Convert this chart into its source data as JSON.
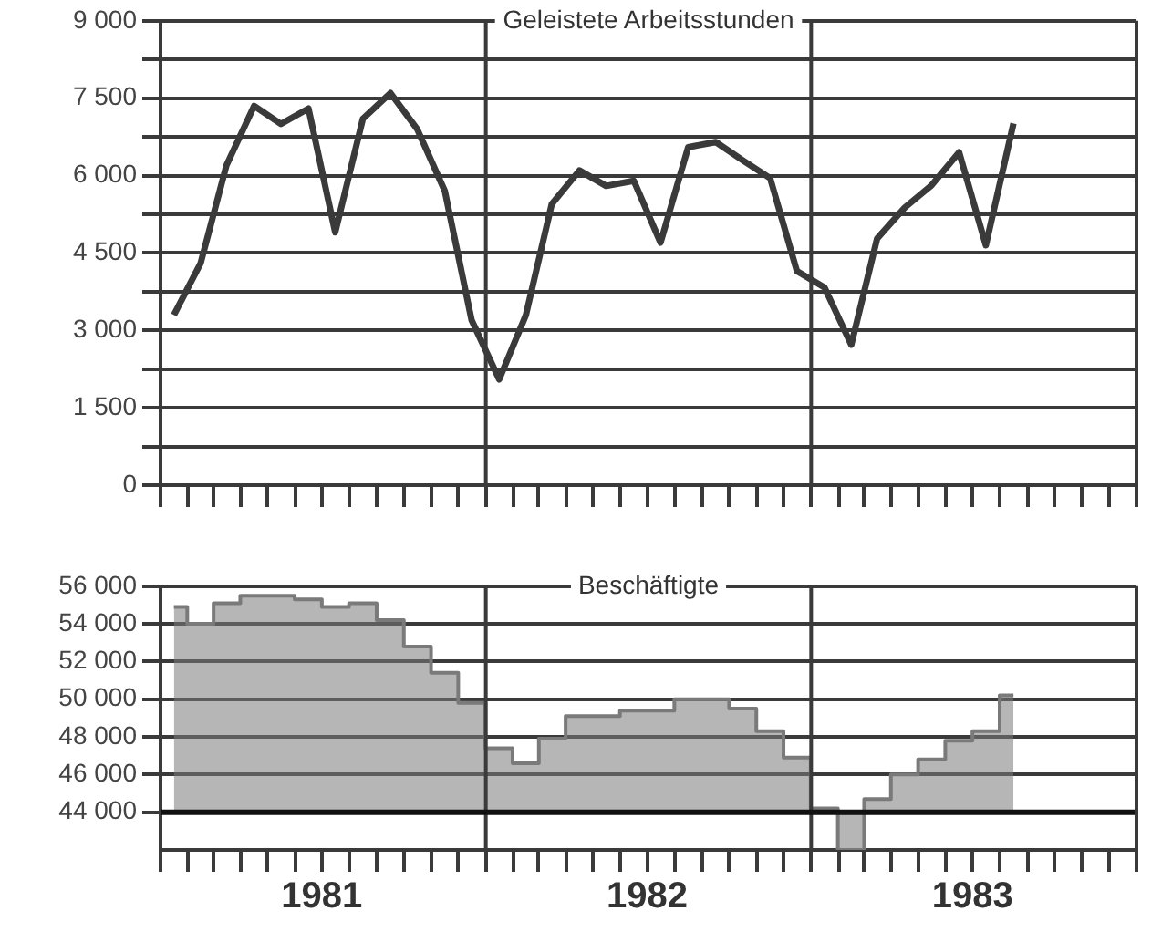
{
  "chart_data": [
    {
      "type": "line",
      "title": "Geleistete Arbeitsstunden",
      "x": [
        "1981-01-16",
        "1981-02-15",
        "1981-03-16",
        "1981-04-16",
        "1981-05-16",
        "1981-06-16",
        "1981-07-16",
        "1981-08-16",
        "1981-09-16",
        "1981-10-16",
        "1981-11-16",
        "1981-12-16",
        "1982-01-16",
        "1982-02-15",
        "1982-03-16",
        "1982-04-16",
        "1982-05-16",
        "1982-06-16",
        "1982-07-16",
        "1982-08-16",
        "1982-09-16",
        "1982-10-16",
        "1982-11-16",
        "1982-12-16",
        "1983-01-16",
        "1983-02-15",
        "1983-03-16",
        "1983-04-16",
        "1983-05-16",
        "1983-06-16",
        "1983-07-16",
        "1983-08-16"
      ],
      "series": [
        {
          "color": "#3a3a3a",
          "values": [
            3300,
            4300,
            6200,
            7350,
            7000,
            7300,
            4900,
            7100,
            7600,
            6900,
            5700,
            3200,
            2050,
            3300,
            5450,
            6100,
            5800,
            5900,
            4700,
            6550,
            6650,
            6300,
            5950,
            4150,
            3830,
            2720,
            4780,
            5380,
            5810,
            6450,
            4650,
            7010
          ]
        }
      ],
      "xlim": [
        "1981-01",
        "1984-01"
      ],
      "xticks": [
        {
          "value": "1981-01",
          "label": null
        },
        {
          "value": "1981-02",
          "label": null
        },
        {
          "value": "1981-03",
          "label": null
        },
        {
          "value": "1981-04",
          "label": null
        },
        {
          "value": "1981-05",
          "label": null
        },
        {
          "value": "1981-06",
          "label": null
        },
        {
          "value": "1981-07",
          "label": null
        },
        {
          "value": "1981-08",
          "label": null
        },
        {
          "value": "1981-09",
          "label": null
        },
        {
          "value": "1981-10",
          "label": null
        },
        {
          "value": "1981-11",
          "label": null
        },
        {
          "value": "1981-12",
          "label": null
        },
        {
          "value": "1982-01",
          "label": null
        },
        {
          "value": "1982-02",
          "label": null
        },
        {
          "value": "1982-03",
          "label": null
        },
        {
          "value": "1982-04",
          "label": null
        },
        {
          "value": "1982-05",
          "label": null
        },
        {
          "value": "1982-06",
          "label": null
        },
        {
          "value": "1982-07",
          "label": null
        },
        {
          "value": "1982-08",
          "label": null
        },
        {
          "value": "1982-09",
          "label": null
        },
        {
          "value": "1982-10",
          "label": null
        },
        {
          "value": "1982-11",
          "label": null
        },
        {
          "value": "1982-12",
          "label": null
        },
        {
          "value": "1983-01",
          "label": null
        },
        {
          "value": "1983-02",
          "label": null
        },
        {
          "value": "1983-03",
          "label": null
        },
        {
          "value": "1983-04",
          "label": null
        },
        {
          "value": "1983-05",
          "label": null
        },
        {
          "value": "1983-06",
          "label": null
        },
        {
          "value": "1983-07",
          "label": null
        },
        {
          "value": "1983-08",
          "label": null
        },
        {
          "value": "1983-09",
          "label": null
        },
        {
          "value": "1983-10",
          "label": null
        },
        {
          "value": "1983-11",
          "label": null
        },
        {
          "value": "1983-12",
          "label": null
        },
        {
          "value": "1984-01",
          "label": null
        }
      ],
      "ylim": [
        0,
        9000
      ],
      "yticks": [
        {
          "value": 0,
          "label": "0"
        },
        {
          "value": 750,
          "label": null
        },
        {
          "value": 1500,
          "label": "1 500"
        },
        {
          "value": 2250,
          "label": null
        },
        {
          "value": 3000,
          "label": "3 000"
        },
        {
          "value": 3750,
          "label": null
        },
        {
          "value": 4500,
          "label": "4 500"
        },
        {
          "value": 5250,
          "label": null
        },
        {
          "value": 6000,
          "label": "6 000"
        },
        {
          "value": 6750,
          "label": null
        },
        {
          "value": 7500,
          "label": "7 500"
        },
        {
          "value": 8250,
          "label": null
        },
        {
          "value": 9000,
          "label": "9 000"
        }
      ],
      "ref_lines": [
        {
          "axis": "x",
          "value": "1982-01",
          "color": "#3a3a3a"
        },
        {
          "axis": "x",
          "value": "1983-01",
          "color": "#3a3a3a"
        }
      ],
      "grid": "y",
      "tick_labels": "y",
      "line_style": "solid",
      "legend": false
    },
    {
      "type": "step",
      "title": "Beschäftigte",
      "x": [
        "1981-01-16",
        "1981-02-15",
        "1981-03-16",
        "1981-04-16",
        "1981-05-16",
        "1981-06-16",
        "1981-07-16",
        "1981-08-16",
        "1981-09-16",
        "1981-10-16",
        "1981-11-16",
        "1981-12-16",
        "1982-01-16",
        "1982-02-15",
        "1982-03-16",
        "1982-04-16",
        "1982-05-16",
        "1982-06-16",
        "1982-07-16",
        "1982-08-16",
        "1982-09-16",
        "1982-10-16",
        "1982-11-16",
        "1982-12-16",
        "1983-01-16",
        "1983-02-15",
        "1983-03-16",
        "1983-04-16",
        "1983-05-16",
        "1983-06-16",
        "1983-07-16",
        "1983-08-16"
      ],
      "series": [
        {
          "color": "#7a7a7a",
          "values": [
            54900,
            54000,
            55100,
            55500,
            55500,
            55300,
            54900,
            55100,
            54200,
            52800,
            51400,
            49800,
            47400,
            46600,
            47900,
            49100,
            49100,
            49400,
            49400,
            50000,
            50000,
            49500,
            48300,
            46900,
            44200,
            42000,
            44700,
            46000,
            46800,
            47800,
            48300,
            50200
          ]
        }
      ],
      "xlim": [
        "1981-01",
        "1984-01"
      ],
      "xticks": [
        {
          "value": "1981-01",
          "label": null
        },
        {
          "value": "1981-02",
          "label": null
        },
        {
          "value": "1981-03",
          "label": null
        },
        {
          "value": "1981-04",
          "label": null
        },
        {
          "value": "1981-05",
          "label": null
        },
        {
          "value": "1981-06",
          "label": null
        },
        {
          "value": "1981-07",
          "label": "1981"
        },
        {
          "value": "1981-08",
          "label": null
        },
        {
          "value": "1981-09",
          "label": null
        },
        {
          "value": "1981-10",
          "label": null
        },
        {
          "value": "1981-11",
          "label": null
        },
        {
          "value": "1981-12",
          "label": null
        },
        {
          "value": "1982-01",
          "label": null
        },
        {
          "value": "1982-02",
          "label": null
        },
        {
          "value": "1982-03",
          "label": null
        },
        {
          "value": "1982-04",
          "label": null
        },
        {
          "value": "1982-05",
          "label": null
        },
        {
          "value": "1982-06",
          "label": null
        },
        {
          "value": "1982-07",
          "label": "1982"
        },
        {
          "value": "1982-08",
          "label": null
        },
        {
          "value": "1982-09",
          "label": null
        },
        {
          "value": "1982-10",
          "label": null
        },
        {
          "value": "1982-11",
          "label": null
        },
        {
          "value": "1982-12",
          "label": null
        },
        {
          "value": "1983-01",
          "label": null
        },
        {
          "value": "1983-02",
          "label": null
        },
        {
          "value": "1983-03",
          "label": null
        },
        {
          "value": "1983-04",
          "label": null
        },
        {
          "value": "1983-05",
          "label": null
        },
        {
          "value": "1983-06",
          "label": null
        },
        {
          "value": "1983-07",
          "label": "1983"
        },
        {
          "value": "1983-08",
          "label": null
        },
        {
          "value": "1983-09",
          "label": null
        },
        {
          "value": "1983-10",
          "label": null
        },
        {
          "value": "1983-11",
          "label": null
        },
        {
          "value": "1983-12",
          "label": null
        },
        {
          "value": "1984-01",
          "label": null
        }
      ],
      "ylim": [
        42000,
        56000
      ],
      "yticks": [
        {
          "value": 44000,
          "label": "44 000"
        },
        {
          "value": 46000,
          "label": "46 000"
        },
        {
          "value": 48000,
          "label": "48 000"
        },
        {
          "value": 50000,
          "label": "50 000"
        },
        {
          "value": 52000,
          "label": "52 000"
        },
        {
          "value": 54000,
          "label": "54 000"
        },
        {
          "value": 56000,
          "label": "56 000"
        }
      ],
      "ref_lines": [
        {
          "axis": "x",
          "value": "1982-01",
          "color": "#3a3a3a"
        },
        {
          "axis": "x",
          "value": "1983-01",
          "color": "#3a3a3a"
        },
        {
          "axis": "y",
          "value": 44000,
          "color": "#111111"
        }
      ],
      "grid": "y",
      "line_style": "solid",
      "legend": false
    }
  ]
}
